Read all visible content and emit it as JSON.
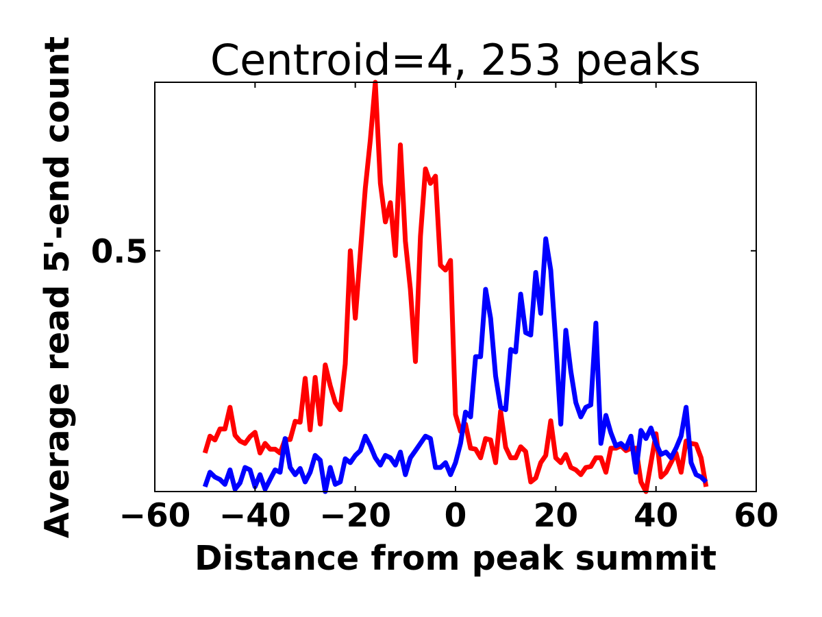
{
  "chart_data": {
    "type": "line",
    "title": "Centroid=4, 253 peaks",
    "xlabel": "Distance from peak summit",
    "ylabel": "Average read 5'-end count",
    "xlim": [
      -60,
      60
    ],
    "ylim": [
      0,
      0.85
    ],
    "xticks": [
      -60,
      -40,
      -20,
      0,
      20,
      40,
      60
    ],
    "xtick_labels": [
      "−60",
      "−40",
      "−20",
      "0",
      "20",
      "40",
      "60"
    ],
    "yticks": [
      0.5
    ],
    "ytick_labels": [
      "0.5"
    ],
    "grid": false,
    "legend": "none",
    "x": [
      -50,
      -49,
      -48,
      -47,
      -46,
      -45,
      -44,
      -43,
      -42,
      -41,
      -40,
      -39,
      -38,
      -37,
      -36,
      -35,
      -34,
      -33,
      -32,
      -31,
      -30,
      -29,
      -28,
      -27,
      -26,
      -25,
      -24,
      -23,
      -22,
      -21,
      -20,
      -19,
      -18,
      -17,
      -16,
      -15,
      -14,
      -13,
      -12,
      -11,
      -10,
      -9,
      -8,
      -7,
      -6,
      -5,
      -4,
      -3,
      -2,
      -1,
      0,
      1,
      2,
      3,
      4,
      5,
      6,
      7,
      8,
      9,
      10,
      11,
      12,
      13,
      14,
      15,
      16,
      17,
      18,
      19,
      20,
      21,
      22,
      23,
      24,
      25,
      26,
      27,
      28,
      29,
      30,
      31,
      32,
      33,
      34,
      35,
      36,
      37,
      38,
      39,
      40,
      41,
      42,
      43,
      44,
      45,
      46,
      47,
      48,
      49,
      50
    ],
    "series": [
      {
        "color": "#ff0000",
        "values": [
          0.08,
          0.115,
          0.107,
          0.13,
          0.13,
          0.175,
          0.117,
          0.105,
          0.1,
          0.114,
          0.123,
          0.08,
          0.1,
          0.088,
          0.088,
          0.08,
          0.108,
          0.108,
          0.146,
          0.144,
          0.235,
          0.128,
          0.237,
          0.14,
          0.263,
          0.22,
          0.185,
          0.17,
          0.265,
          0.5,
          0.36,
          0.495,
          0.63,
          0.73,
          0.85,
          0.64,
          0.56,
          0.6,
          0.49,
          0.72,
          0.52,
          0.42,
          0.27,
          0.53,
          0.67,
          0.64,
          0.655,
          0.47,
          0.46,
          0.48,
          0.16,
          0.125,
          0.14,
          0.09,
          0.088,
          0.07,
          0.11,
          0.107,
          0.06,
          0.167,
          0.092,
          0.07,
          0.07,
          0.093,
          0.083,
          0.02,
          0.028,
          0.06,
          0.075,
          0.147,
          0.07,
          0.06,
          0.077,
          0.05,
          0.045,
          0.035,
          0.05,
          0.052,
          0.07,
          0.07,
          0.04,
          0.09,
          0.09,
          0.095,
          0.085,
          0.09,
          0.09,
          0.02,
          0,
          0.06,
          0.12,
          0.03,
          0.04,
          0.06,
          0.08,
          0.04,
          0.105,
          0.1,
          0.098,
          0.07,
          0.01
        ]
      },
      {
        "color": "#0000ff",
        "values": [
          0.01,
          0.04,
          0.03,
          0.025,
          0.015,
          0.045,
          0.005,
          0.018,
          0.05,
          0.045,
          0.01,
          0.035,
          0.005,
          0.025,
          0.045,
          0.04,
          0.11,
          0.05,
          0.035,
          0.048,
          0.02,
          0.04,
          0.075,
          0.065,
          0,
          0.05,
          0.015,
          0.02,
          0.068,
          0.06,
          0.075,
          0.085,
          0.115,
          0.095,
          0.07,
          0.055,
          0.075,
          0.07,
          0.055,
          0.082,
          0.035,
          0.07,
          0.085,
          0.1,
          0.115,
          0.11,
          0.05,
          0.05,
          0.06,
          0.035,
          0.06,
          0.1,
          0.165,
          0.155,
          0.28,
          0.28,
          0.42,
          0.36,
          0.24,
          0.175,
          0.17,
          0.295,
          0.29,
          0.41,
          0.33,
          0.325,
          0.455,
          0.37,
          0.525,
          0.46,
          0.31,
          0.14,
          0.335,
          0.25,
          0.185,
          0.155,
          0.175,
          0.18,
          0.35,
          0.1,
          0.158,
          0.122,
          0.095,
          0.1,
          0.09,
          0.115,
          0.04,
          0.127,
          0.11,
          0.132,
          0.1,
          0.077,
          0.082,
          0.07,
          0.09,
          0.115,
          0.175,
          0.06,
          0.035,
          0.03,
          0.02
        ]
      }
    ]
  }
}
